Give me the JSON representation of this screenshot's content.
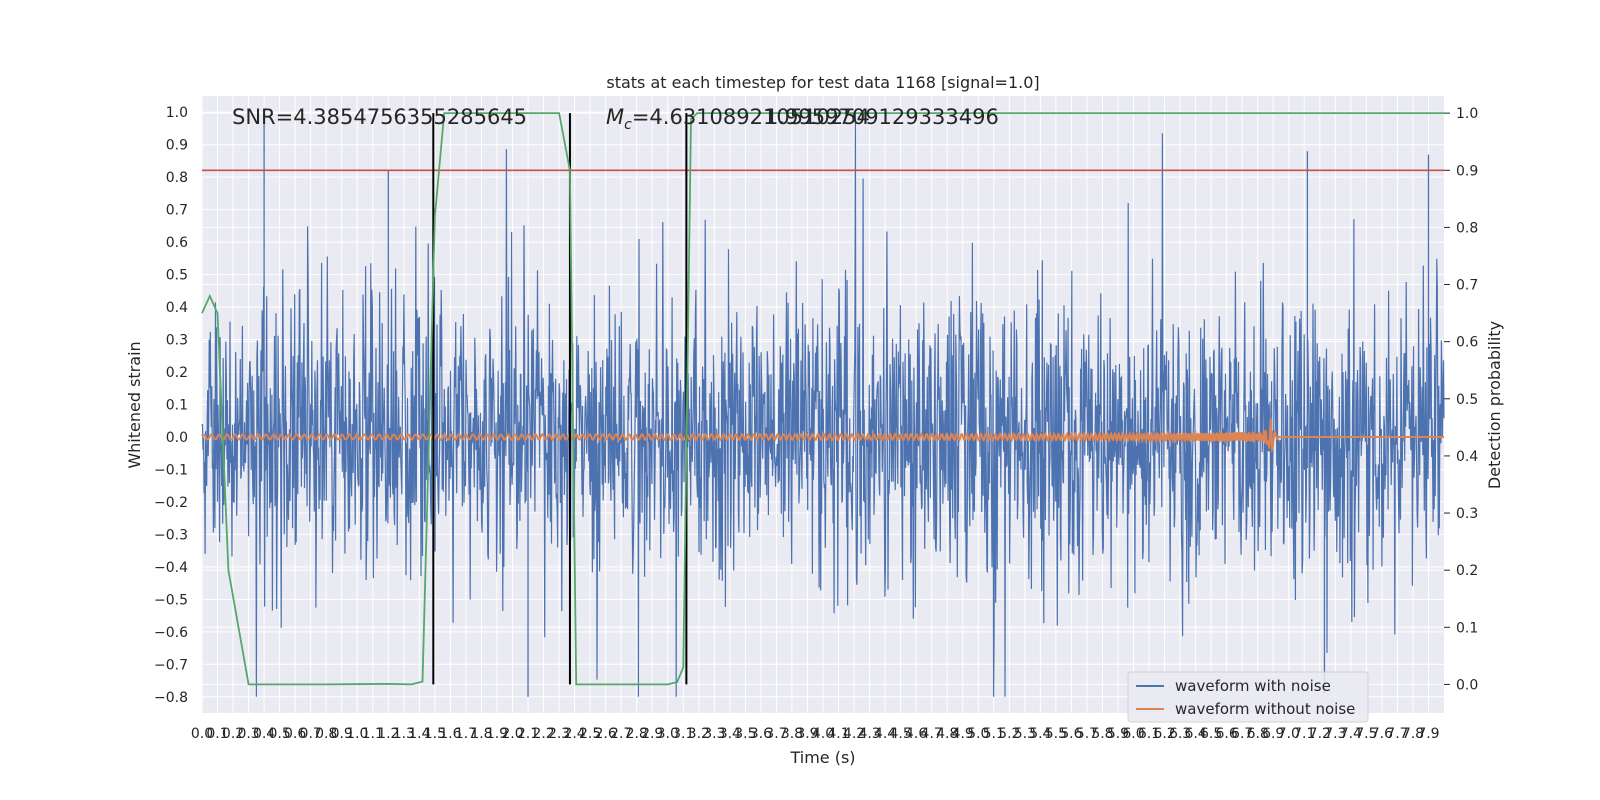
{
  "chart_data": {
    "type": "line",
    "title": "stats at each timestep for test data 1168 [signal=1.0]",
    "xlabel": "Time (s)",
    "ylabel": "Whitened strain",
    "y2label": "Detection probability",
    "xlim": [
      0.0,
      8.0
    ],
    "ylim": [
      -0.85,
      1.05
    ],
    "y2lim": [
      -0.05,
      1.03
    ],
    "grid": true,
    "legend_position": "bottom-right",
    "annotations": {
      "snr": "SNR=4.3854756355285645",
      "mc_prefix": "M",
      "mc_sub": "c",
      "mc_value": "=4.631089210510254",
      "overlap": "1.9959709129333496"
    },
    "x_ticks": [
      "0.0",
      "0.1",
      "0.2",
      "0.3",
      "0.4",
      "0.5",
      "0.6",
      "0.7",
      "0.8",
      "0.9",
      "1.0",
      "1.1",
      "1.2",
      "1.3",
      "1.4",
      "1.5",
      "1.6",
      "1.7",
      "1.8",
      "1.9",
      "2.0",
      "2.1",
      "2.2",
      "2.3",
      "2.4",
      "2.5",
      "2.6",
      "2.7",
      "2.8",
      "2.9",
      "3.0",
      "3.1",
      "3.2",
      "3.3",
      "3.4",
      "3.5",
      "3.6",
      "3.7",
      "3.8",
      "3.9",
      "4.0",
      "4.1",
      "4.2",
      "4.3",
      "4.4",
      "4.5",
      "4.6",
      "4.7",
      "4.8",
      "4.9",
      "5.0",
      "5.1",
      "5.2",
      "5.3",
      "5.4",
      "5.5",
      "5.6",
      "5.7",
      "5.8",
      "5.9",
      "6.0",
      "6.1",
      "6.2",
      "6.3",
      "6.4",
      "6.5",
      "6.6",
      "6.7",
      "6.8",
      "6.9",
      "7.0",
      "7.1",
      "7.2",
      "7.3",
      "7.4",
      "7.5",
      "7.6",
      "7.7",
      "7.8",
      "7.9"
    ],
    "y_ticks": [
      "−0.8",
      "−0.7",
      "−0.6",
      "−0.5",
      "−0.4",
      "−0.3",
      "−0.2",
      "−0.1",
      "0.0",
      "0.1",
      "0.2",
      "0.3",
      "0.4",
      "0.5",
      "0.6",
      "0.7",
      "0.8",
      "0.9",
      "1.0"
    ],
    "y2_ticks": [
      "0.0",
      "0.1",
      "0.2",
      "0.3",
      "0.4",
      "0.5",
      "0.6",
      "0.7",
      "0.8",
      "0.9",
      "1.0"
    ],
    "threshold": {
      "axis": "y2",
      "value": 0.9,
      "color": "#c44e52"
    },
    "vlines": [
      1.49,
      2.37,
      3.12
    ],
    "series": [
      {
        "name": "waveform with noise",
        "color": "#4c72b0",
        "axis": "y",
        "kind": "noise",
        "baseline_amplitude": 0.3,
        "extremes": [
          -0.8,
          1.0
        ]
      },
      {
        "name": "waveform without noise",
        "color": "#dd8452",
        "axis": "y",
        "kind": "chirp",
        "merger_time": 6.88,
        "peak": 0.1
      },
      {
        "name": "",
        "color": "#55a868",
        "axis": "y2",
        "kind": "probability",
        "x": [
          0.0,
          0.05,
          0.1,
          0.17,
          0.3,
          0.4,
          0.8,
          1.2,
          1.35,
          1.42,
          1.5,
          1.56,
          1.7,
          2.3,
          2.37,
          2.41,
          2.47,
          2.6,
          3.0,
          3.06,
          3.1,
          3.15,
          3.19,
          3.3,
          4.0,
          6.0,
          8.0
        ],
        "y": [
          0.65,
          0.68,
          0.65,
          0.2,
          0.0,
          0.0,
          0.0,
          0.001,
          0.0,
          0.005,
          0.82,
          1.0,
          1.0,
          1.0,
          0.9,
          0.0,
          0.0,
          0.0,
          0.0,
          0.004,
          0.03,
          0.99,
          1.0,
          1.0,
          1.0,
          1.0,
          1.0
        ]
      }
    ]
  }
}
